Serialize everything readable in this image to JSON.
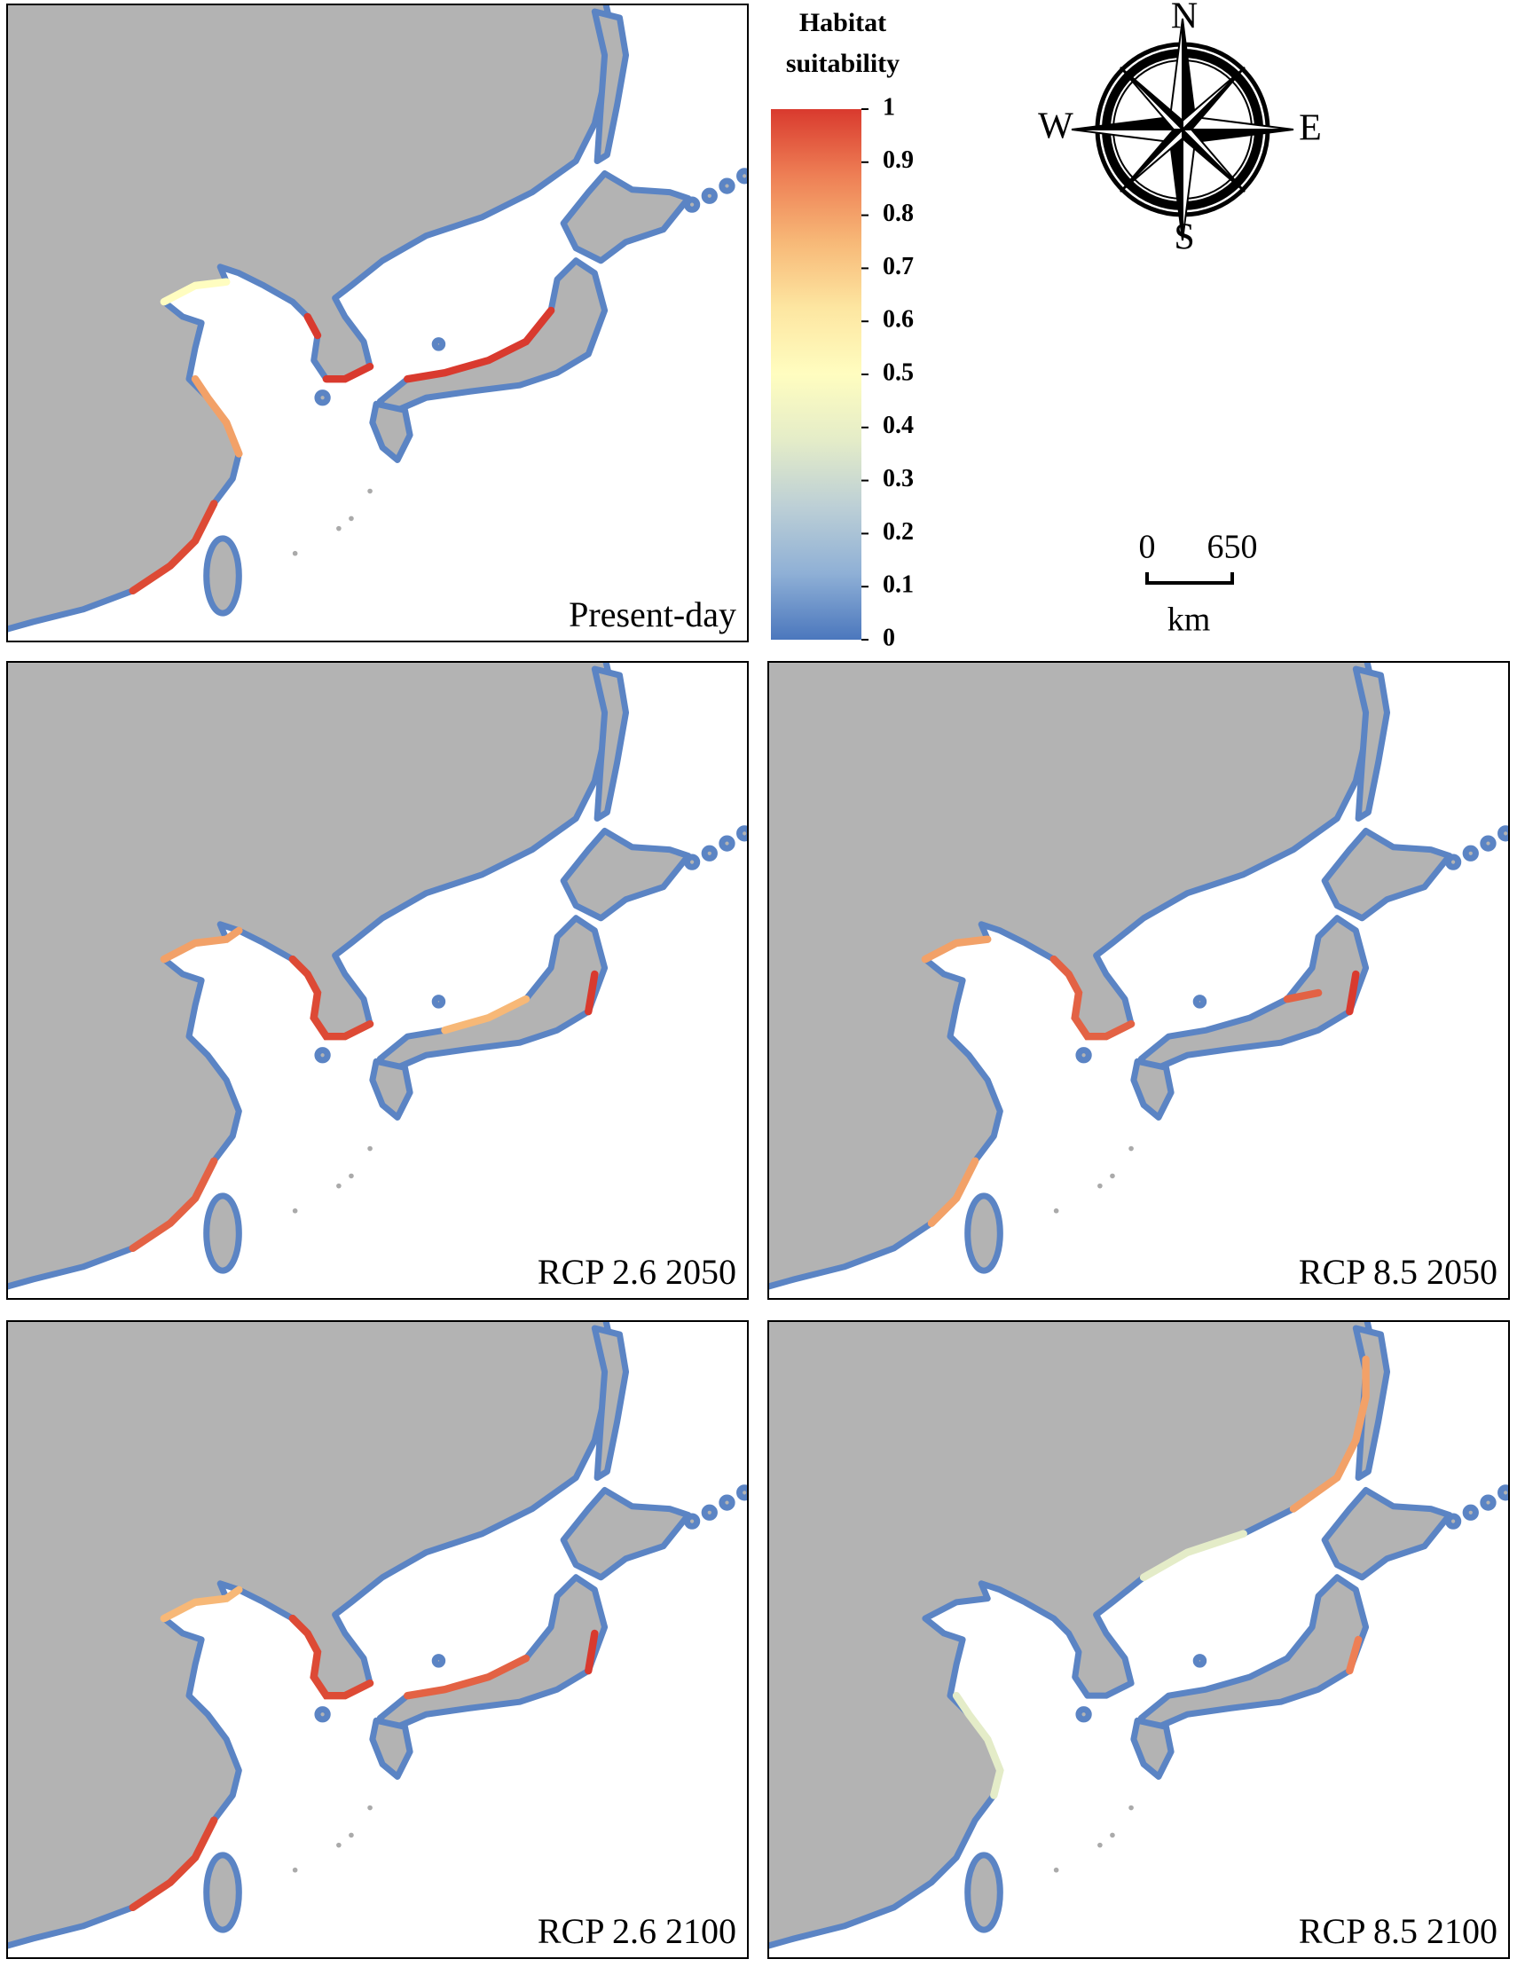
{
  "legend": {
    "title_line1": "Habitat",
    "title_line2": "suitability",
    "ticks": [
      0,
      0.1,
      0.2,
      0.3,
      0.4,
      0.5,
      0.6,
      0.7,
      0.8,
      0.9,
      1
    ],
    "lim": [
      0,
      1
    ],
    "colors": [
      "#4b77bd",
      "#8fb0d6",
      "#bccfd6",
      "#e4ecc8",
      "#fffdc0",
      "#fde6a1",
      "#f7b877",
      "#ee7f55",
      "#d93a2e"
    ]
  },
  "compass": {
    "n": "N",
    "e": "E",
    "s": "S",
    "w": "W"
  },
  "scale_bar": {
    "ticks": [
      0,
      650
    ],
    "unit": "km"
  },
  "panels": [
    {
      "label": "Present-day"
    },
    {
      "label": "RCP 2.6 2050"
    },
    {
      "label": "RCP 8.5 2050"
    },
    {
      "label": "RCP 2.6 2100"
    },
    {
      "label": "RCP 8.5 2100"
    }
  ]
}
